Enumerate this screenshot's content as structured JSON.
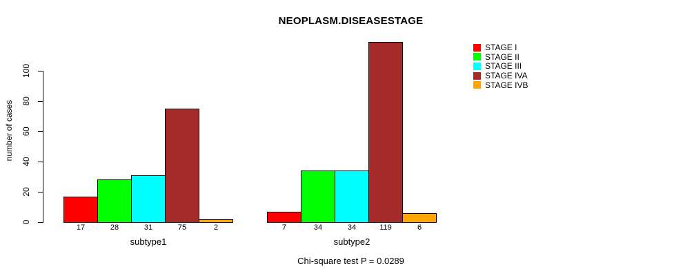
{
  "chart_data": {
    "type": "bar",
    "title": "NEOPLASM.DISEASESTAGE",
    "xlabel": "",
    "ylabel": "number of cases",
    "footnote": "Chi-square test P = 0.0289",
    "categories": [
      "subtype1",
      "subtype2"
    ],
    "series": [
      {
        "name": "STAGE I",
        "color": "#FF0000",
        "values": [
          17,
          7
        ]
      },
      {
        "name": "STAGE II",
        "color": "#00FF00",
        "values": [
          28,
          34
        ]
      },
      {
        "name": "STAGE III",
        "color": "#00FFFF",
        "values": [
          31,
          34
        ]
      },
      {
        "name": "STAGE IVA",
        "color": "#A52A2A",
        "values": [
          75,
          119
        ]
      },
      {
        "name": "STAGE IVB",
        "color": "#FFA500",
        "values": [
          2,
          6
        ]
      }
    ],
    "y_ticks": [
      0,
      20,
      40,
      60,
      80,
      100
    ],
    "ylim": [
      0,
      120
    ],
    "grid": false,
    "legend_position": "right",
    "bar_value_labels_shown": true,
    "axis_color": "#000000",
    "background_color": "#FFFFFF"
  }
}
